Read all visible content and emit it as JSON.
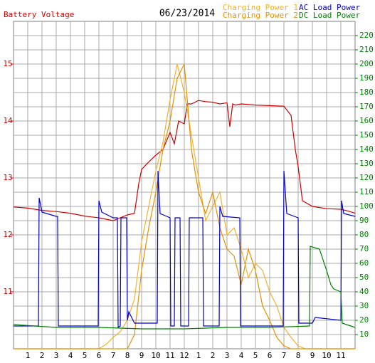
{
  "chart_data": {
    "type": "line",
    "title": "06/23/2014",
    "xlim": [
      0,
      24
    ],
    "xticks": [
      1,
      2,
      3,
      4,
      5,
      6,
      7,
      8,
      9,
      10,
      11,
      12,
      {
        "value": 13,
        "label": "1"
      },
      {
        "value": 14,
        "label": "2"
      },
      {
        "value": 15,
        "label": "3"
      },
      {
        "value": 16,
        "label": "4"
      },
      {
        "value": 17,
        "label": "5"
      },
      {
        "value": 18,
        "label": "6"
      },
      {
        "value": 19,
        "label": "7"
      },
      {
        "value": 20,
        "label": "8"
      },
      {
        "value": 21,
        "label": "9"
      },
      {
        "value": 22,
        "label": "10"
      },
      {
        "value": 23,
        "label": "11"
      }
    ],
    "ylim": [
      10,
      15.75
    ],
    "yticks": [
      11,
      12,
      13,
      14,
      15
    ],
    "y2lim": [
      0,
      230
    ],
    "y2ticks": [
      10,
      20,
      30,
      40,
      50,
      60,
      70,
      80,
      90,
      100,
      110,
      120,
      130,
      140,
      150,
      160,
      170,
      180,
      190,
      200,
      210,
      220
    ],
    "grid": true,
    "series": [
      {
        "name": "Battery Voltage",
        "color": "#d00000",
        "axis": "y",
        "x": [
          0,
          1,
          2,
          3,
          4,
          5,
          6,
          7,
          8,
          8.5,
          8.8,
          9,
          9.5,
          10,
          10.5,
          11,
          11.3,
          11.6,
          12,
          12.2,
          12.5,
          13,
          13.5,
          14,
          14.5,
          15,
          15.2,
          15.4,
          15.6,
          16,
          17,
          18,
          19,
          19.5,
          19.8,
          20,
          20.3,
          21,
          22,
          23,
          23.5,
          24
        ],
        "values": [
          12.49,
          12.47,
          12.43,
          12.41,
          12.38,
          12.33,
          12.3,
          12.25,
          12.35,
          12.38,
          12.9,
          13.15,
          13.28,
          13.4,
          13.5,
          13.8,
          13.6,
          14,
          13.95,
          14.3,
          14.3,
          14.36,
          14.34,
          14.33,
          14.3,
          14.32,
          13.9,
          14.3,
          14.28,
          14.3,
          14.28,
          14.27,
          14.26,
          14.1,
          13.5,
          13.2,
          12.6,
          12.5,
          12.46,
          12.45,
          12.42,
          12.38
        ]
      },
      {
        "name": "Charging Power 1",
        "color": "#f4b030",
        "axis": "y2",
        "x": [
          0,
          6,
          6.5,
          7,
          7.5,
          8,
          8.5,
          9,
          9.5,
          10,
          10.5,
          11,
          11.5,
          12,
          12.5,
          13,
          13.5,
          14,
          14.5,
          15,
          15.5,
          16,
          16.5,
          17,
          17.5,
          18,
          18.5,
          19,
          19.5,
          20,
          20.5,
          24
        ],
        "values": [
          0,
          0,
          3,
          8,
          12,
          20,
          35,
          75,
          100,
          125,
          145,
          175,
          200,
          180,
          150,
          120,
          90,
          100,
          110,
          80,
          85,
          70,
          50,
          60,
          55,
          40,
          30,
          15,
          8,
          2,
          0,
          0
        ]
      },
      {
        "name": "Charging Power 2",
        "color": "#e89000",
        "axis": "y2",
        "x": [
          0,
          8,
          8.5,
          9,
          9.5,
          10,
          10.5,
          11,
          11.5,
          12,
          12.5,
          13,
          13.5,
          14,
          14.5,
          15,
          15.5,
          16,
          16.5,
          17,
          17.5,
          18,
          18.5,
          19,
          19.5,
          24
        ],
        "values": [
          0,
          0,
          10,
          55,
          85,
          110,
          140,
          160,
          190,
          200,
          140,
          110,
          95,
          110,
          85,
          70,
          65,
          45,
          70,
          55,
          30,
          20,
          8,
          2,
          0,
          0
        ]
      },
      {
        "name": "AC Load Power",
        "color": "#0000d0",
        "axis": "y2",
        "x": [
          0,
          1.75,
          1.8,
          2,
          3,
          3.1,
          3.15,
          5.95,
          6,
          6.2,
          7,
          7.3,
          7.35,
          7.5,
          7.55,
          7.95,
          8,
          8.1,
          8.5,
          10.1,
          10.15,
          10.3,
          11,
          11.05,
          11.3,
          11.35,
          11.7,
          11.75,
          12.3,
          12.35,
          13.3,
          13.35,
          14.45,
          14.5,
          14.7,
          15.9,
          15.95,
          18.95,
          19,
          19.2,
          20,
          20.05,
          21,
          21.2,
          23,
          23.05,
          23.2,
          24
        ],
        "values": [
          16,
          16,
          106,
          96,
          93,
          93,
          16,
          16,
          104,
          96,
          92,
          92,
          15,
          16,
          92,
          92,
          20,
          26,
          18,
          18,
          125,
          95,
          92,
          16,
          16,
          92,
          92,
          16,
          16,
          92,
          92,
          16,
          16,
          100,
          93,
          92,
          16,
          16,
          125,
          95,
          92,
          18,
          18,
          22,
          20,
          104,
          95,
          93
        ]
      },
      {
        "name": "DC Load Power",
        "color": "#008000",
        "axis": "y2",
        "x": [
          0,
          3,
          6,
          9,
          12,
          15,
          18,
          20.8,
          20.85,
          21.5,
          22,
          22.3,
          22.5,
          23,
          23.1,
          24
        ],
        "values": [
          17,
          15,
          15,
          14,
          14,
          15,
          15,
          16,
          72,
          70,
          55,
          45,
          42,
          40,
          18,
          15
        ]
      }
    ]
  }
}
